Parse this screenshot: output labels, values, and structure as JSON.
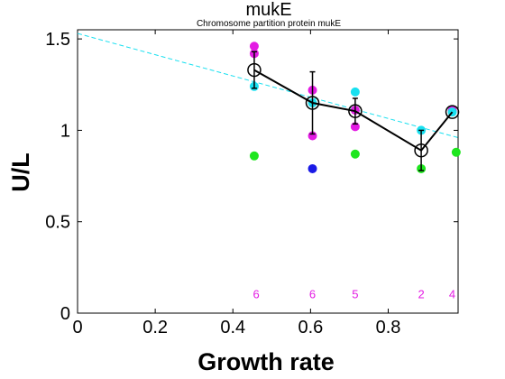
{
  "chart_data": {
    "type": "scatter",
    "title": "mukE",
    "subtitle": "Chromosome partition protein mukE",
    "xlabel": "Growth rate",
    "ylabel": "U/L",
    "xlim": [
      0,
      0.98
    ],
    "ylim": [
      0,
      1.55
    ],
    "xticks": [
      0,
      0.2,
      0.4,
      0.6,
      0.8
    ],
    "xtick_labels": [
      "0",
      "0.2",
      "0.4",
      "0.6",
      "0.8"
    ],
    "yticks": [
      0,
      0.5,
      1,
      1.5
    ],
    "ytick_labels": [
      "0",
      "0.5",
      "1",
      "1.5"
    ],
    "colors": {
      "magenta": "#e31be3",
      "cyan": "#19e0f0",
      "green": "#1ee61e",
      "blue": "#1a1ae6",
      "fit_line": "#19e0f0",
      "mean": "#000000"
    },
    "series": [
      {
        "name": "magenta",
        "color": "#e31be3",
        "points": [
          [
            0.455,
            1.46
          ],
          [
            0.455,
            1.42
          ],
          [
            0.605,
            1.22
          ],
          [
            0.605,
            0.97
          ],
          [
            0.715,
            1.11
          ],
          [
            0.715,
            1.02
          ],
          [
            0.965,
            1.11
          ]
        ]
      },
      {
        "name": "cyan",
        "color": "#19e0f0",
        "points": [
          [
            0.455,
            1.24
          ],
          [
            0.605,
            1.15
          ],
          [
            0.715,
            1.21
          ],
          [
            0.885,
            1.0
          ],
          [
            0.965,
            1.1
          ]
        ]
      },
      {
        "name": "green",
        "color": "#1ee61e",
        "points": [
          [
            0.455,
            0.86
          ],
          [
            0.715,
            0.87
          ],
          [
            0.885,
            0.79
          ],
          [
            0.975,
            0.88
          ]
        ]
      },
      {
        "name": "blue",
        "color": "#1a1ae6",
        "points": [
          [
            0.605,
            0.79
          ]
        ]
      }
    ],
    "mean_line": {
      "x": [
        0.455,
        0.605,
        0.715,
        0.885,
        0.965
      ],
      "y": [
        1.33,
        1.15,
        1.105,
        0.89,
        1.1
      ],
      "err": [
        0.1,
        0.17,
        0.07,
        0.11,
        0.0
      ]
    },
    "fit_line": {
      "x": [
        0,
        0.98
      ],
      "y": [
        1.53,
        0.96
      ]
    },
    "counts": [
      {
        "x": 0.46,
        "label": "6"
      },
      {
        "x": 0.605,
        "label": "6"
      },
      {
        "x": 0.715,
        "label": "5"
      },
      {
        "x": 0.885,
        "label": "2"
      },
      {
        "x": 0.965,
        "label": "4"
      }
    ],
    "count_y": 0.1
  }
}
